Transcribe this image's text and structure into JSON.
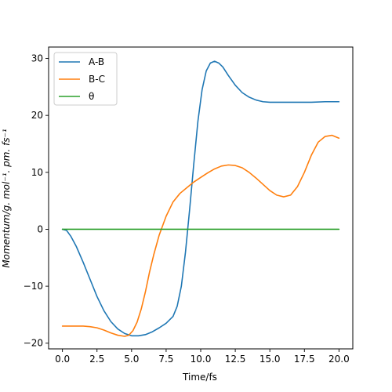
{
  "chart_data": {
    "type": "line",
    "xlabel": "Time/fs",
    "ylabel": "Momentum/g. mol⁻¹. pm. fs⁻¹",
    "xlim": [
      -1.0,
      21.0
    ],
    "ylim": [
      -21.0,
      32.0
    ],
    "xticks": [
      0.0,
      2.5,
      5.0,
      7.5,
      10.0,
      12.5,
      15.0,
      17.5,
      20.0
    ],
    "xtick_labels": [
      "0.0",
      "2.5",
      "5.0",
      "7.5",
      "10.0",
      "12.5",
      "15.0",
      "17.5",
      "20.0"
    ],
    "yticks": [
      -20,
      -10,
      0,
      10,
      20,
      30
    ],
    "ytick_labels": [
      "−20",
      "−10",
      "0",
      "10",
      "20",
      "30"
    ],
    "grid": false,
    "legend_position": "top-left",
    "series": [
      {
        "name": "A-B",
        "color": "#1f77b4",
        "x": [
          0.0,
          0.3,
          0.6,
          1.0,
          1.5,
          2.0,
          2.5,
          3.0,
          3.5,
          4.0,
          4.5,
          5.0,
          5.5,
          6.0,
          6.5,
          7.0,
          7.5,
          8.0,
          8.3,
          8.6,
          8.9,
          9.2,
          9.5,
          9.8,
          10.1,
          10.4,
          10.7,
          11.0,
          11.3,
          11.6,
          12.0,
          12.5,
          13.0,
          13.5,
          14.0,
          14.5,
          15.0,
          15.5,
          16.0,
          17.0,
          18.0,
          19.0,
          20.0
        ],
        "y": [
          0.0,
          -0.2,
          -1.2,
          -3.0,
          -5.8,
          -8.8,
          -11.8,
          -14.3,
          -16.2,
          -17.5,
          -18.3,
          -18.7,
          -18.7,
          -18.5,
          -18.0,
          -17.3,
          -16.5,
          -15.3,
          -13.5,
          -10.0,
          -4.0,
          3.5,
          11.5,
          19.0,
          24.5,
          27.8,
          29.2,
          29.5,
          29.2,
          28.5,
          27.0,
          25.3,
          24.0,
          23.2,
          22.7,
          22.4,
          22.3,
          22.3,
          22.3,
          22.3,
          22.3,
          22.4,
          22.4
        ]
      },
      {
        "name": "B-C",
        "color": "#ff7f0e",
        "x": [
          0.0,
          0.5,
          1.0,
          1.5,
          2.0,
          2.5,
          3.0,
          3.5,
          4.0,
          4.5,
          4.8,
          5.1,
          5.4,
          5.7,
          6.0,
          6.3,
          6.6,
          7.0,
          7.5,
          8.0,
          8.5,
          9.0,
          9.5,
          10.0,
          10.5,
          11.0,
          11.5,
          12.0,
          12.5,
          13.0,
          13.5,
          14.0,
          14.5,
          15.0,
          15.5,
          16.0,
          16.5,
          17.0,
          17.5,
          18.0,
          18.5,
          19.0,
          19.5,
          20.0
        ],
        "y": [
          -17.0,
          -17.0,
          -17.0,
          -17.0,
          -17.1,
          -17.3,
          -17.7,
          -18.2,
          -18.6,
          -18.8,
          -18.6,
          -17.8,
          -16.3,
          -14.0,
          -11.0,
          -7.5,
          -4.5,
          -1.0,
          2.3,
          4.8,
          6.3,
          7.3,
          8.3,
          9.1,
          9.9,
          10.6,
          11.1,
          11.3,
          11.2,
          10.8,
          10.0,
          9.0,
          7.9,
          6.8,
          6.0,
          5.7,
          6.0,
          7.5,
          10.0,
          13.0,
          15.3,
          16.3,
          16.5,
          16.0
        ]
      },
      {
        "name": "θ",
        "color": "#2ca02c",
        "x": [
          0.0,
          20.0
        ],
        "y": [
          0.0,
          0.0
        ]
      }
    ]
  }
}
